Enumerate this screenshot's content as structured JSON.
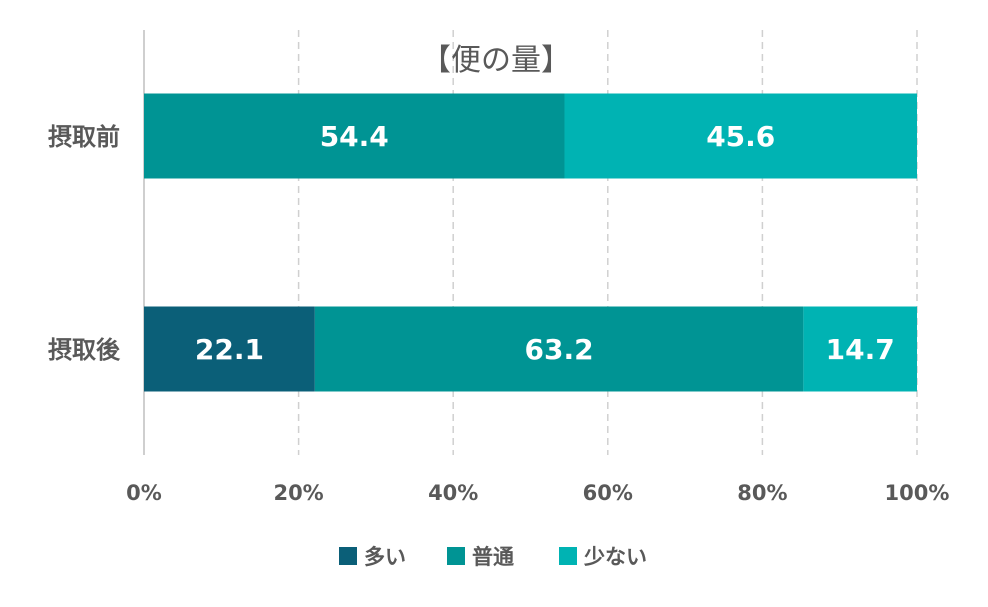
{
  "chart_data": {
    "type": "bar",
    "orientation": "horizontal",
    "stacked": "percent",
    "title": "【便の量】",
    "categories": [
      "摂取前",
      "摂取後"
    ],
    "series": [
      {
        "name": "多い",
        "color": "#0b5f78",
        "values": [
          0,
          22.1
        ]
      },
      {
        "name": "普通",
        "color": "#009494",
        "values": [
          54.4,
          63.2
        ]
      },
      {
        "name": "少ない",
        "color": "#00b3b3",
        "values": [
          45.6,
          14.7
        ]
      }
    ],
    "xlim": [
      0,
      100
    ],
    "x_ticks": [
      "0%",
      "20%",
      "40%",
      "60%",
      "80%",
      "100%"
    ],
    "grid": "vertical-dashed",
    "legend_position": "bottom",
    "data_labels": true,
    "label_color": "#ffffff",
    "text_color": "#595959"
  }
}
